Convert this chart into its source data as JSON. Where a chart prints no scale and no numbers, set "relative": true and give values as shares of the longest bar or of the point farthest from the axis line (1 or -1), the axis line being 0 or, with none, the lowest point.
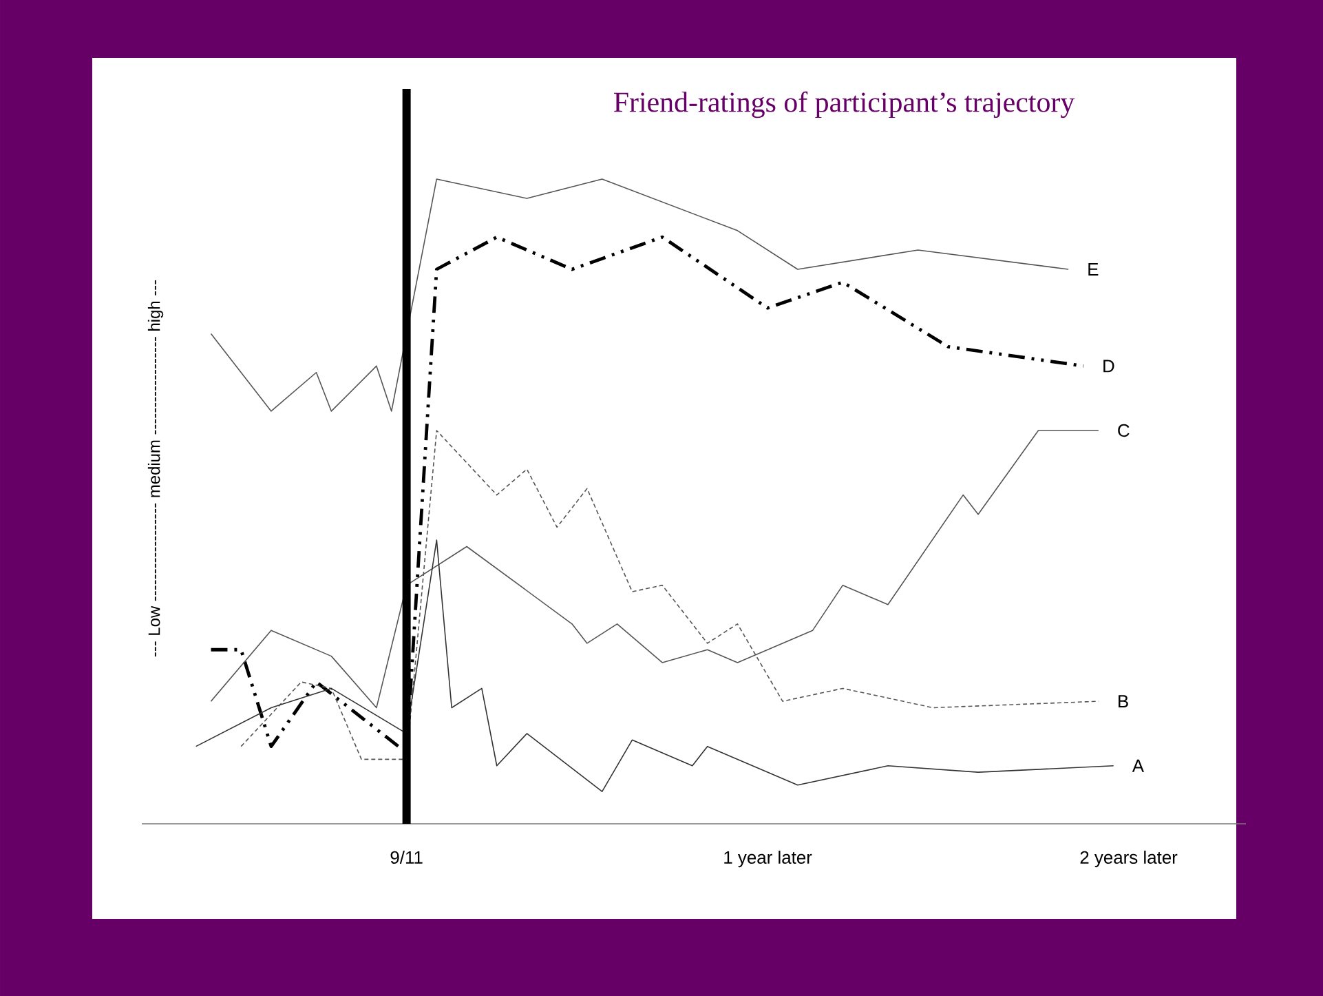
{
  "chart_data": {
    "type": "line",
    "title": "Friend-ratings of participant’s trajectory",
    "ylabel": "--- Low ------------------ medium ------------------ high ---",
    "relative": true,
    "categories": [
      null,
      null,
      null,
      null,
      null,
      null,
      null,
      null,
      null,
      null,
      null,
      null,
      null,
      null,
      "9/11",
      null,
      null,
      null,
      null,
      null,
      null,
      null,
      null,
      null,
      null,
      null,
      null,
      null,
      null,
      null,
      null,
      null,
      null,
      null,
      null,
      null,
      null,
      null,
      "1 year later",
      null,
      null,
      null,
      null,
      null,
      null,
      null,
      null,
      null,
      null,
      null,
      null,
      null,
      null,
      null,
      null,
      null,
      null,
      null,
      null,
      null,
      null,
      null,
      "2 years later"
    ],
    "ref_lines": [
      {
        "axis": "x",
        "value": "9/11",
        "color": "#000000"
      }
    ],
    "series": [
      {
        "name": "E",
        "color": "#555555",
        "line_style": "solid",
        "values": [
          null,
          0.76,
          null,
          null,
          null,
          0.64,
          null,
          null,
          0.7,
          0.64,
          null,
          null,
          0.71,
          0.64,
          null,
          null,
          1.0,
          null,
          null,
          null,
          null,
          null,
          0.97,
          null,
          null,
          null,
          null,
          1.0,
          null,
          null,
          null,
          null,
          null,
          null,
          null,
          null,
          0.92,
          null,
          null,
          null,
          0.86,
          null,
          null,
          null,
          null,
          null,
          null,
          null,
          0.89,
          null,
          null,
          null,
          null,
          null,
          null,
          null,
          null,
          null,
          0.86,
          null,
          null,
          null,
          null
        ]
      },
      {
        "name": "D",
        "color": "#000000",
        "line_style": "dashdot",
        "values": [
          null,
          0.27,
          null,
          0.27,
          null,
          0.12,
          null,
          null,
          0.22,
          null,
          null,
          null,
          null,
          null,
          0.11,
          null,
          0.86,
          null,
          null,
          null,
          0.91,
          null,
          null,
          null,
          null,
          0.86,
          null,
          null,
          null,
          null,
          null,
          0.91,
          null,
          null,
          null,
          null,
          null,
          null,
          0.8,
          null,
          null,
          null,
          null,
          0.84,
          null,
          null,
          null,
          null,
          null,
          null,
          0.74,
          null,
          null,
          null,
          null,
          null,
          null,
          null,
          null,
          0.71,
          null,
          null,
          null
        ]
      },
      {
        "name": "C",
        "color": "#555555",
        "line_style": "solid",
        "values": [
          null,
          0.19,
          null,
          null,
          null,
          0.3,
          null,
          null,
          null,
          0.26,
          null,
          null,
          0.18,
          null,
          0.37,
          null,
          null,
          null,
          0.43,
          null,
          null,
          null,
          null,
          null,
          null,
          0.31,
          0.28,
          null,
          0.31,
          null,
          null,
          0.25,
          null,
          null,
          0.27,
          null,
          0.25,
          null,
          null,
          null,
          null,
          0.3,
          null,
          0.37,
          null,
          null,
          0.34,
          null,
          null,
          null,
          null,
          0.51,
          0.48,
          null,
          null,
          null,
          0.61,
          null,
          null,
          null,
          0.61,
          null,
          null
        ]
      },
      {
        "name": "B",
        "color": "#555555",
        "line_style": "dashed",
        "values": [
          null,
          null,
          null,
          0.12,
          null,
          null,
          null,
          0.22,
          null,
          0.21,
          null,
          0.1,
          null,
          null,
          0.1,
          null,
          0.61,
          null,
          null,
          null,
          0.51,
          null,
          0.55,
          null,
          0.46,
          null,
          0.52,
          null,
          null,
          0.36,
          null,
          0.37,
          null,
          null,
          0.28,
          null,
          0.31,
          null,
          null,
          0.19,
          null,
          null,
          null,
          0.21,
          null,
          null,
          null,
          null,
          null,
          0.18,
          null,
          null,
          null,
          null,
          null,
          null,
          null,
          null,
          null,
          null,
          0.19,
          null,
          null
        ]
      },
      {
        "name": "A",
        "color": "#333333",
        "line_style": "solid",
        "values": [
          0.12,
          null,
          null,
          null,
          null,
          0.18,
          null,
          null,
          null,
          0.21,
          null,
          null,
          null,
          null,
          0.14,
          null,
          0.44,
          0.18,
          null,
          0.21,
          0.09,
          null,
          0.14,
          null,
          null,
          null,
          null,
          0.05,
          null,
          0.13,
          null,
          null,
          null,
          0.09,
          0.12,
          null,
          null,
          null,
          null,
          null,
          0.06,
          null,
          null,
          null,
          null,
          null,
          0.09,
          null,
          null,
          null,
          null,
          null,
          0.08,
          null,
          null,
          null,
          null,
          null,
          null,
          null,
          null,
          0.09,
          null
        ]
      }
    ]
  }
}
